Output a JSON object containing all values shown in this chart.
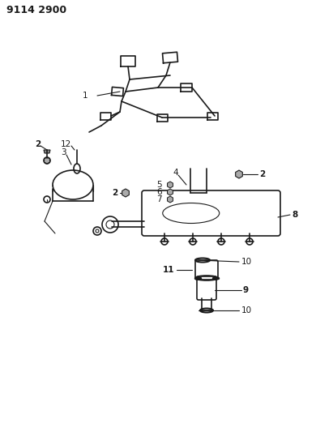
{
  "title": "9114 2900",
  "bg_color": "#ffffff",
  "line_color": "#1a1a1a",
  "text_color": "#1a1a1a",
  "title_fontsize": 9,
  "label_fontsize": 7.5,
  "figsize": [
    4.11,
    5.33
  ],
  "dpi": 100
}
